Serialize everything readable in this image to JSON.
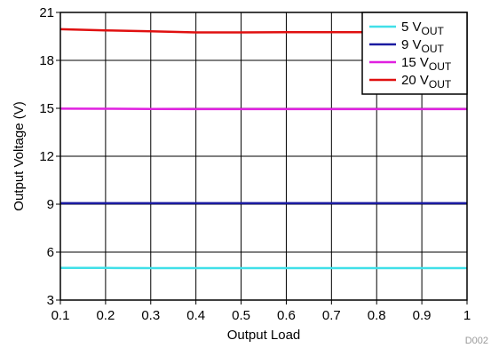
{
  "chart_data": {
    "type": "line",
    "title": "",
    "xlabel": "Output Load",
    "ylabel": "Output Voltage (V)",
    "xlim": [
      0.1,
      1
    ],
    "ylim": [
      3,
      21
    ],
    "x_ticks": [
      "0.1",
      "0.2",
      "0.3",
      "0.4",
      "0.5",
      "0.6",
      "0.7",
      "0.8",
      "0.9",
      "1"
    ],
    "y_ticks": [
      "3",
      "6",
      "9",
      "12",
      "15",
      "18",
      "21"
    ],
    "grid": true,
    "legend_position": "top-right",
    "figure_id": "D002",
    "x": [
      0.1,
      0.2,
      0.3,
      0.4,
      0.5,
      0.6,
      0.7,
      0.8,
      0.9,
      1.0
    ],
    "series": [
      {
        "name": "5 V",
        "name_sub": "OUT",
        "color": "#40e0e8",
        "values": [
          5.01,
          5.01,
          5.0,
          5.0,
          5.0,
          5.0,
          5.0,
          5.0,
          5.0,
          5.0
        ]
      },
      {
        "name": "9 V",
        "name_sub": "OUT",
        "color": "#1a1aa0",
        "values": [
          9.06,
          9.06,
          9.06,
          9.06,
          9.06,
          9.06,
          9.06,
          9.06,
          9.06,
          9.06
        ]
      },
      {
        "name": "15 V",
        "name_sub": "OUT",
        "color": "#e020e0",
        "values": [
          14.98,
          14.97,
          14.96,
          14.95,
          14.95,
          14.95,
          14.95,
          14.95,
          14.95,
          14.95
        ]
      },
      {
        "name": "20 V",
        "name_sub": "OUT",
        "color": "#e01010",
        "values": [
          19.95,
          19.88,
          19.82,
          19.75,
          19.75,
          19.76,
          19.76,
          19.76,
          19.76,
          19.76
        ]
      }
    ]
  }
}
